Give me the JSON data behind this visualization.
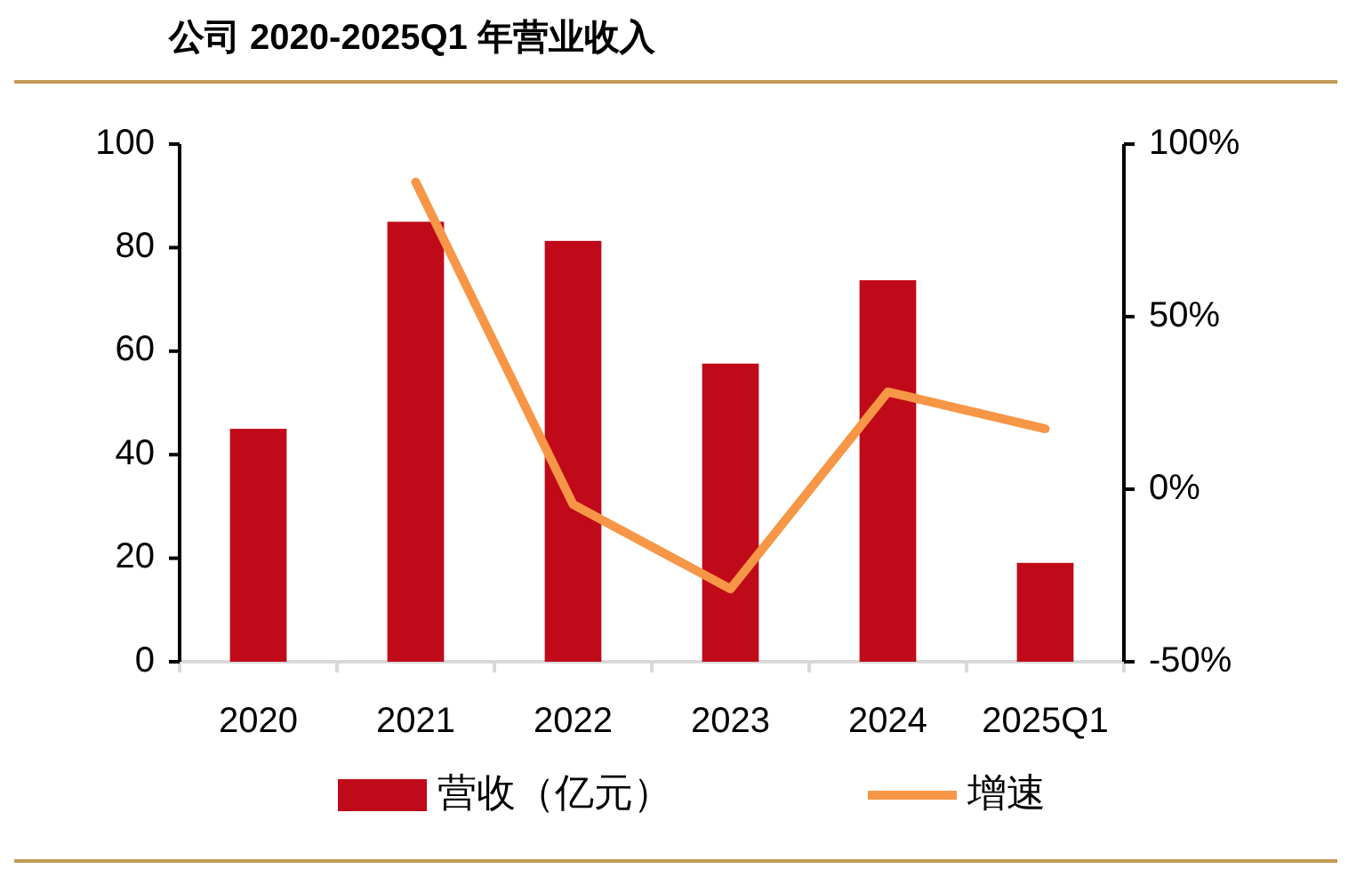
{
  "chart_data": {
    "type": "bar",
    "title": "公司 2020-2025Q1 年营业收入",
    "categories": [
      "2020",
      "2021",
      "2022",
      "2023",
      "2024",
      "2025Q1"
    ],
    "series": [
      {
        "name": "营收（亿元）",
        "color": "#c00a19",
        "values": [
          45,
          85,
          81.3,
          57.6,
          73.7,
          19.1
        ]
      },
      {
        "name": "增速",
        "type": "line",
        "axis": "y2",
        "color": "#f79646",
        "values": [
          null,
          89,
          -4.4,
          -28.9,
          28.2,
          17.5
        ]
      }
    ],
    "ylim": [
      0,
      100
    ],
    "yticks": [
      0,
      20,
      40,
      60,
      80,
      100
    ],
    "y2lim": [
      -50,
      100
    ],
    "y2ticks": [
      {
        "value": -50,
        "label": "-50%"
      },
      {
        "value": 0,
        "label": "0%"
      },
      {
        "value": 50,
        "label": "50%"
      },
      {
        "value": 100,
        "label": "100%"
      }
    ],
    "grid": false,
    "legend": "bottom",
    "marker": "none",
    "line_style": "solid"
  }
}
